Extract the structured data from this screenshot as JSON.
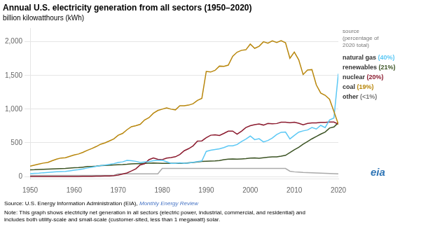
{
  "chart_data": {
    "type": "line",
    "title": "Annual U.S. electricity generation from all sectors (1950–2020)",
    "ylabel": "billion kilowatthours (kWh)",
    "xlim": [
      1950,
      2020
    ],
    "ylim": [
      -30,
      2200
    ],
    "xticks": [
      1950,
      1960,
      1970,
      1980,
      1990,
      2000,
      2010,
      2020
    ],
    "yticks": [
      0,
      500,
      {
        "value": 1000,
        "label": "1,000"
      },
      {
        "value": 1500,
        "label": "1,500"
      },
      {
        "value": 2000,
        "label": "2,000"
      }
    ],
    "grid": true,
    "x": [
      1950,
      1951,
      1952,
      1953,
      1954,
      1955,
      1956,
      1957,
      1958,
      1959,
      1960,
      1961,
      1962,
      1963,
      1964,
      1965,
      1966,
      1967,
      1968,
      1969,
      1970,
      1971,
      1972,
      1973,
      1974,
      1975,
      1976,
      1977,
      1978,
      1979,
      1980,
      1981,
      1982,
      1983,
      1984,
      1985,
      1986,
      1987,
      1988,
      1989,
      1990,
      1991,
      1992,
      1993,
      1994,
      1995,
      1996,
      1997,
      1998,
      1999,
      2000,
      2001,
      2002,
      2003,
      2004,
      2005,
      2006,
      2007,
      2008,
      2009,
      2010,
      2011,
      2012,
      2013,
      2014,
      2015,
      2016,
      2017,
      2018,
      2019,
      2020
    ],
    "series": [
      {
        "color": "#B8860B",
        "values": [
          155,
          170,
          185,
          200,
          210,
          235,
          258,
          275,
          280,
          300,
          320,
          335,
          360,
          390,
          415,
          445,
          480,
          500,
          528,
          558,
          613,
          640,
          695,
          740,
          755,
          775,
          840,
          875,
          940,
          980,
          1000,
          1020,
          1000,
          990,
          1050,
          1050,
          1060,
          1080,
          1130,
          1160,
          1560,
          1551,
          1576,
          1639,
          1635,
          1653,
          1785,
          1845,
          1873,
          1881,
          1966,
          1903,
          1933,
          2000,
          1978,
          2013,
          1990,
          2016,
          1985,
          1755,
          1847,
          1733,
          1514,
          1581,
          1587,
          1360,
          1239,
          1206,
          1147,
          966,
          774
        ]
      },
      {
        "color": "#5BC8F5",
        "values": [
          44,
          47,
          50,
          57,
          62,
          67,
          72,
          75,
          77,
          85,
          94,
          102,
          113,
          127,
          140,
          152,
          163,
          170,
          181,
          192,
          208,
          218,
          241,
          236,
          226,
          210,
          216,
          222,
          235,
          241,
          242,
          219,
          197,
          195,
          204,
          197,
          202,
          212,
          221,
          232,
          373,
          390,
          401,
          411,
          430,
          455,
          455,
          475,
          520,
          555,
          601,
          548,
          562,
          514,
          535,
          571,
          624,
          657,
          660,
          559,
          611,
          659,
          678,
          691,
          727,
          705,
          760,
          727,
          840,
          870,
          1526
        ]
      },
      {
        "color": "#8B1A2E",
        "values": [
          0,
          0,
          0,
          0,
          0,
          0,
          0,
          0,
          0,
          0,
          1,
          2,
          3,
          4,
          5,
          6,
          7,
          8,
          10,
          14,
          22,
          38,
          54,
          83,
          114,
          173,
          191,
          251,
          276,
          255,
          251,
          273,
          282,
          294,
          328,
          383,
          414,
          455,
          527,
          529,
          577,
          613,
          619,
          610,
          640,
          673,
          675,
          628,
          673,
          728,
          754,
          769,
          780,
          764,
          789,
          782,
          787,
          806,
          806,
          799,
          807,
          790,
          769,
          789,
          797,
          797,
          805,
          805,
          808,
          809,
          778
        ]
      },
      {
        "color": "#3B5323",
        "values": [
          101,
          102,
          105,
          108,
          110,
          112,
          115,
          118,
          120,
          125,
          130,
          133,
          140,
          148,
          150,
          155,
          162,
          165,
          168,
          172,
          176,
          178,
          182,
          188,
          190,
          190,
          195,
          198,
          202,
          198,
          195,
          196,
          195,
          197,
          195,
          196,
          205,
          210,
          218,
          225,
          228,
          230,
          232,
          238,
          250,
          258,
          260,
          258,
          262,
          265,
          275,
          277,
          272,
          280,
          288,
          292,
          292,
          302,
          315,
          355,
          398,
          433,
          480,
          520,
          560,
          595,
          630,
          660,
          720,
          736,
          800
        ]
      },
      {
        "color": "#AAAAAA",
        "values": [
          18,
          18,
          18,
          18,
          18,
          18,
          18,
          18,
          18,
          18,
          18,
          18,
          18,
          18,
          18,
          18,
          18,
          18,
          18,
          18,
          40,
          40,
          40,
          40,
          40,
          40,
          40,
          40,
          40,
          40,
          120,
          120,
          120,
          120,
          120,
          120,
          120,
          120,
          120,
          120,
          120,
          120,
          120,
          120,
          120,
          120,
          120,
          120,
          120,
          120,
          120,
          120,
          120,
          120,
          120,
          120,
          120,
          120,
          120,
          80,
          70,
          65,
          60,
          58,
          55,
          52,
          50,
          48,
          46,
          44,
          40
        ]
      }
    ],
    "side_labels": {
      "header": "source\n(percentage of\n2020 total)",
      "rows": [
        {
          "text": "natural gas",
          "share": "(40%)",
          "color": "#5BC8F5"
        },
        {
          "text": "renewables",
          "share": "(21%)",
          "color": "#3B5323"
        },
        {
          "text": "nuclear",
          "share": "(20%)",
          "color": "#8B1A2E"
        },
        {
          "text": "coal",
          "share": "(19%)",
          "color": "#B8860B"
        },
        {
          "text": "other",
          "share": "(<1%)",
          "color": "#777777"
        }
      ]
    },
    "logo": "eia",
    "source": {
      "text": "Source: U.S. Energy Information Administration (EIA), ",
      "publication": "Monthly Energy Review"
    },
    "note": [
      "Note: This graph shows electricity net generation in all sectors (electric power, industrial, commercial, and residential) and",
      "includes both utility-scale and small-scale (customer-sited, less than 1 megawatt) solar."
    ]
  }
}
